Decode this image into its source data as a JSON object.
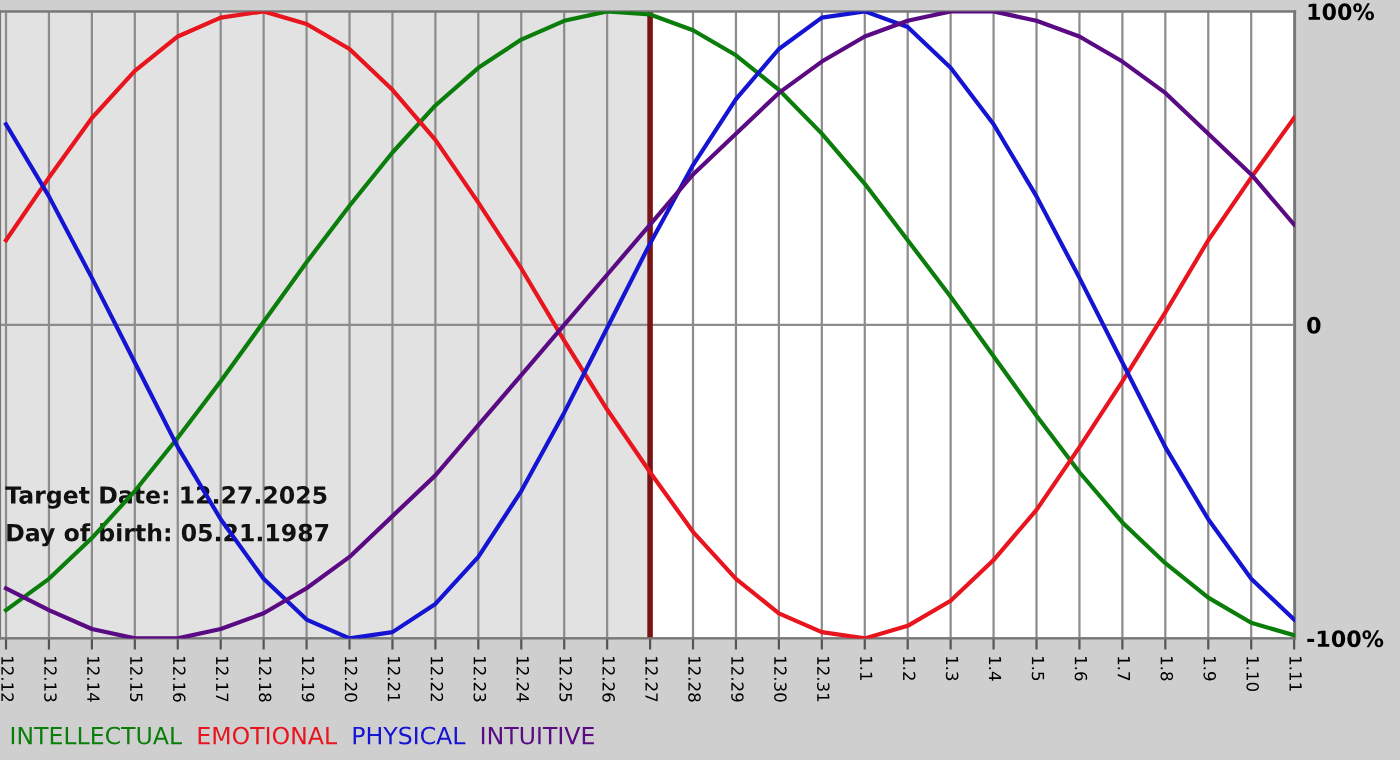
{
  "chart_data": {
    "type": "line",
    "categories": [
      "12.12",
      "12.13",
      "12.14",
      "12.15",
      "12.16",
      "12.17",
      "12.18",
      "12.19",
      "12.20",
      "12.21",
      "12.22",
      "12.23",
      "12.24",
      "12.25",
      "12.26",
      "12.27",
      "12.28",
      "12.29",
      "12.30",
      "12.31",
      "1.1",
      "1.2",
      "1.3",
      "1.4",
      "1.5",
      "1.6",
      "1.7",
      "1.8",
      "1.9",
      "1.10",
      "1.11"
    ],
    "series": [
      {
        "name": "INTELLECTUAL",
        "color": "#0a7d0a",
        "values": [
          -91,
          -81,
          -68,
          -53,
          -36,
          -18,
          1,
          20,
          38,
          55,
          70,
          82,
          91,
          97,
          100,
          99,
          94,
          86,
          75,
          61,
          45,
          27,
          9,
          -10,
          -29,
          -47,
          -63,
          -76,
          -87,
          -95,
          -99
        ]
      },
      {
        "name": "EMOTIONAL",
        "color": "#e8141e",
        "values": [
          27,
          47,
          66,
          81,
          92,
          98,
          100,
          96,
          88,
          75,
          59,
          39,
          18,
          -5,
          -27,
          -47,
          -66,
          -81,
          -92,
          -98,
          -100,
          -96,
          -88,
          -75,
          -59,
          -39,
          -18,
          4,
          27,
          47,
          66
        ]
      },
      {
        "name": "PHYSICAL",
        "color": "#1414d2",
        "values": [
          64,
          41,
          15,
          -12,
          -39,
          -62,
          -81,
          -94,
          -100,
          -98,
          -89,
          -74,
          -53,
          -28,
          -1,
          26,
          51,
          72,
          88,
          98,
          100,
          95,
          82,
          64,
          41,
          15,
          -12,
          -39,
          -62,
          -81,
          -94
        ]
      },
      {
        "name": "INTUITIVE",
        "color": "#5a0a82",
        "values": [
          -84,
          -91,
          -97,
          -100,
          -100,
          -97,
          -92,
          -84,
          -74,
          -61,
          -48,
          -32,
          -16,
          0,
          16,
          32,
          48,
          61,
          74,
          84,
          92,
          97,
          100,
          100,
          97,
          92,
          84,
          74,
          61,
          48,
          32
        ]
      }
    ],
    "ylim": [
      -100,
      100
    ],
    "yticks": [
      {
        "value": 100,
        "label": "100%"
      },
      0,
      {
        "value": -100,
        "label": "-100%"
      }
    ],
    "grid": true,
    "legend": "bottom left",
    "ref_lines": [
      {
        "axis": "x",
        "value": "12.27",
        "color": "#7a1414"
      }
    ],
    "bands": [
      {
        "axis": "x",
        "from": "12.12",
        "to": "12.27",
        "color": "#e2e2e2"
      }
    ],
    "annotations": [
      "Target Date: 12.27.2025",
      "Day of birth: 05.21.1987"
    ]
  }
}
